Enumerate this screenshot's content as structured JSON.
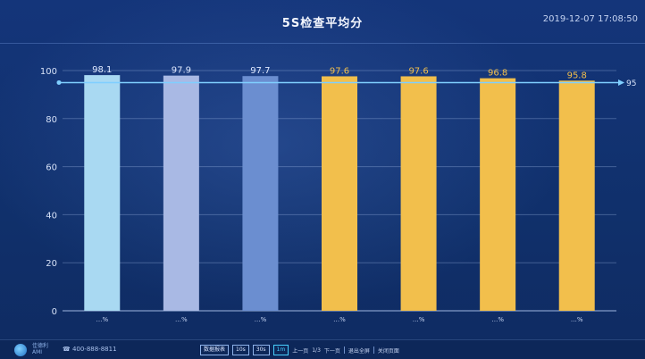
{
  "header": {
    "title": "5S检查平均分",
    "timestamp": "2019-12-07 17:08:50"
  },
  "chart_data": {
    "type": "bar",
    "title": "5S检查平均分",
    "categories": [
      "…%",
      "…%",
      "…%",
      "…%",
      "…%",
      "…%",
      "…%"
    ],
    "values": [
      98.1,
      97.9,
      97.7,
      97.6,
      97.6,
      96.8,
      95.8
    ],
    "data_labels": [
      "98.1",
      "97.9",
      "97.7",
      "97.6",
      "97.6",
      "96.8",
      "95.8"
    ],
    "bar_colors": [
      "#a9d9f2",
      "#a9b9e4",
      "#6b8ed0",
      "#f2bf4c",
      "#f2bf4c",
      "#f2bf4c",
      "#f2bf4c"
    ],
    "label_colors": [
      "#dfe9ff",
      "#dfe9ff",
      "#dfe9ff",
      "#f2bf4c",
      "#f2bf4c",
      "#f2bf4c",
      "#f2bf4c"
    ],
    "ylim": [
      0,
      100
    ],
    "yticks": [
      "0",
      "20",
      "40",
      "60",
      "80",
      "100"
    ],
    "target_value": 95,
    "target_label": "95",
    "target_color": "#7fcfff",
    "grid": true,
    "xlabel": "",
    "ylabel": ""
  },
  "footer": {
    "logo_text_1": "佳德利",
    "logo_text_2": "AMI",
    "phone": "☎ 400-888-8811",
    "buttons": [
      "数据报表",
      "10s",
      "30s",
      "1m"
    ],
    "active_button": 3,
    "prev": "上一页",
    "page": "1/3",
    "next": "下一页",
    "exit": "退出全屏",
    "close": "关闭页面"
  }
}
